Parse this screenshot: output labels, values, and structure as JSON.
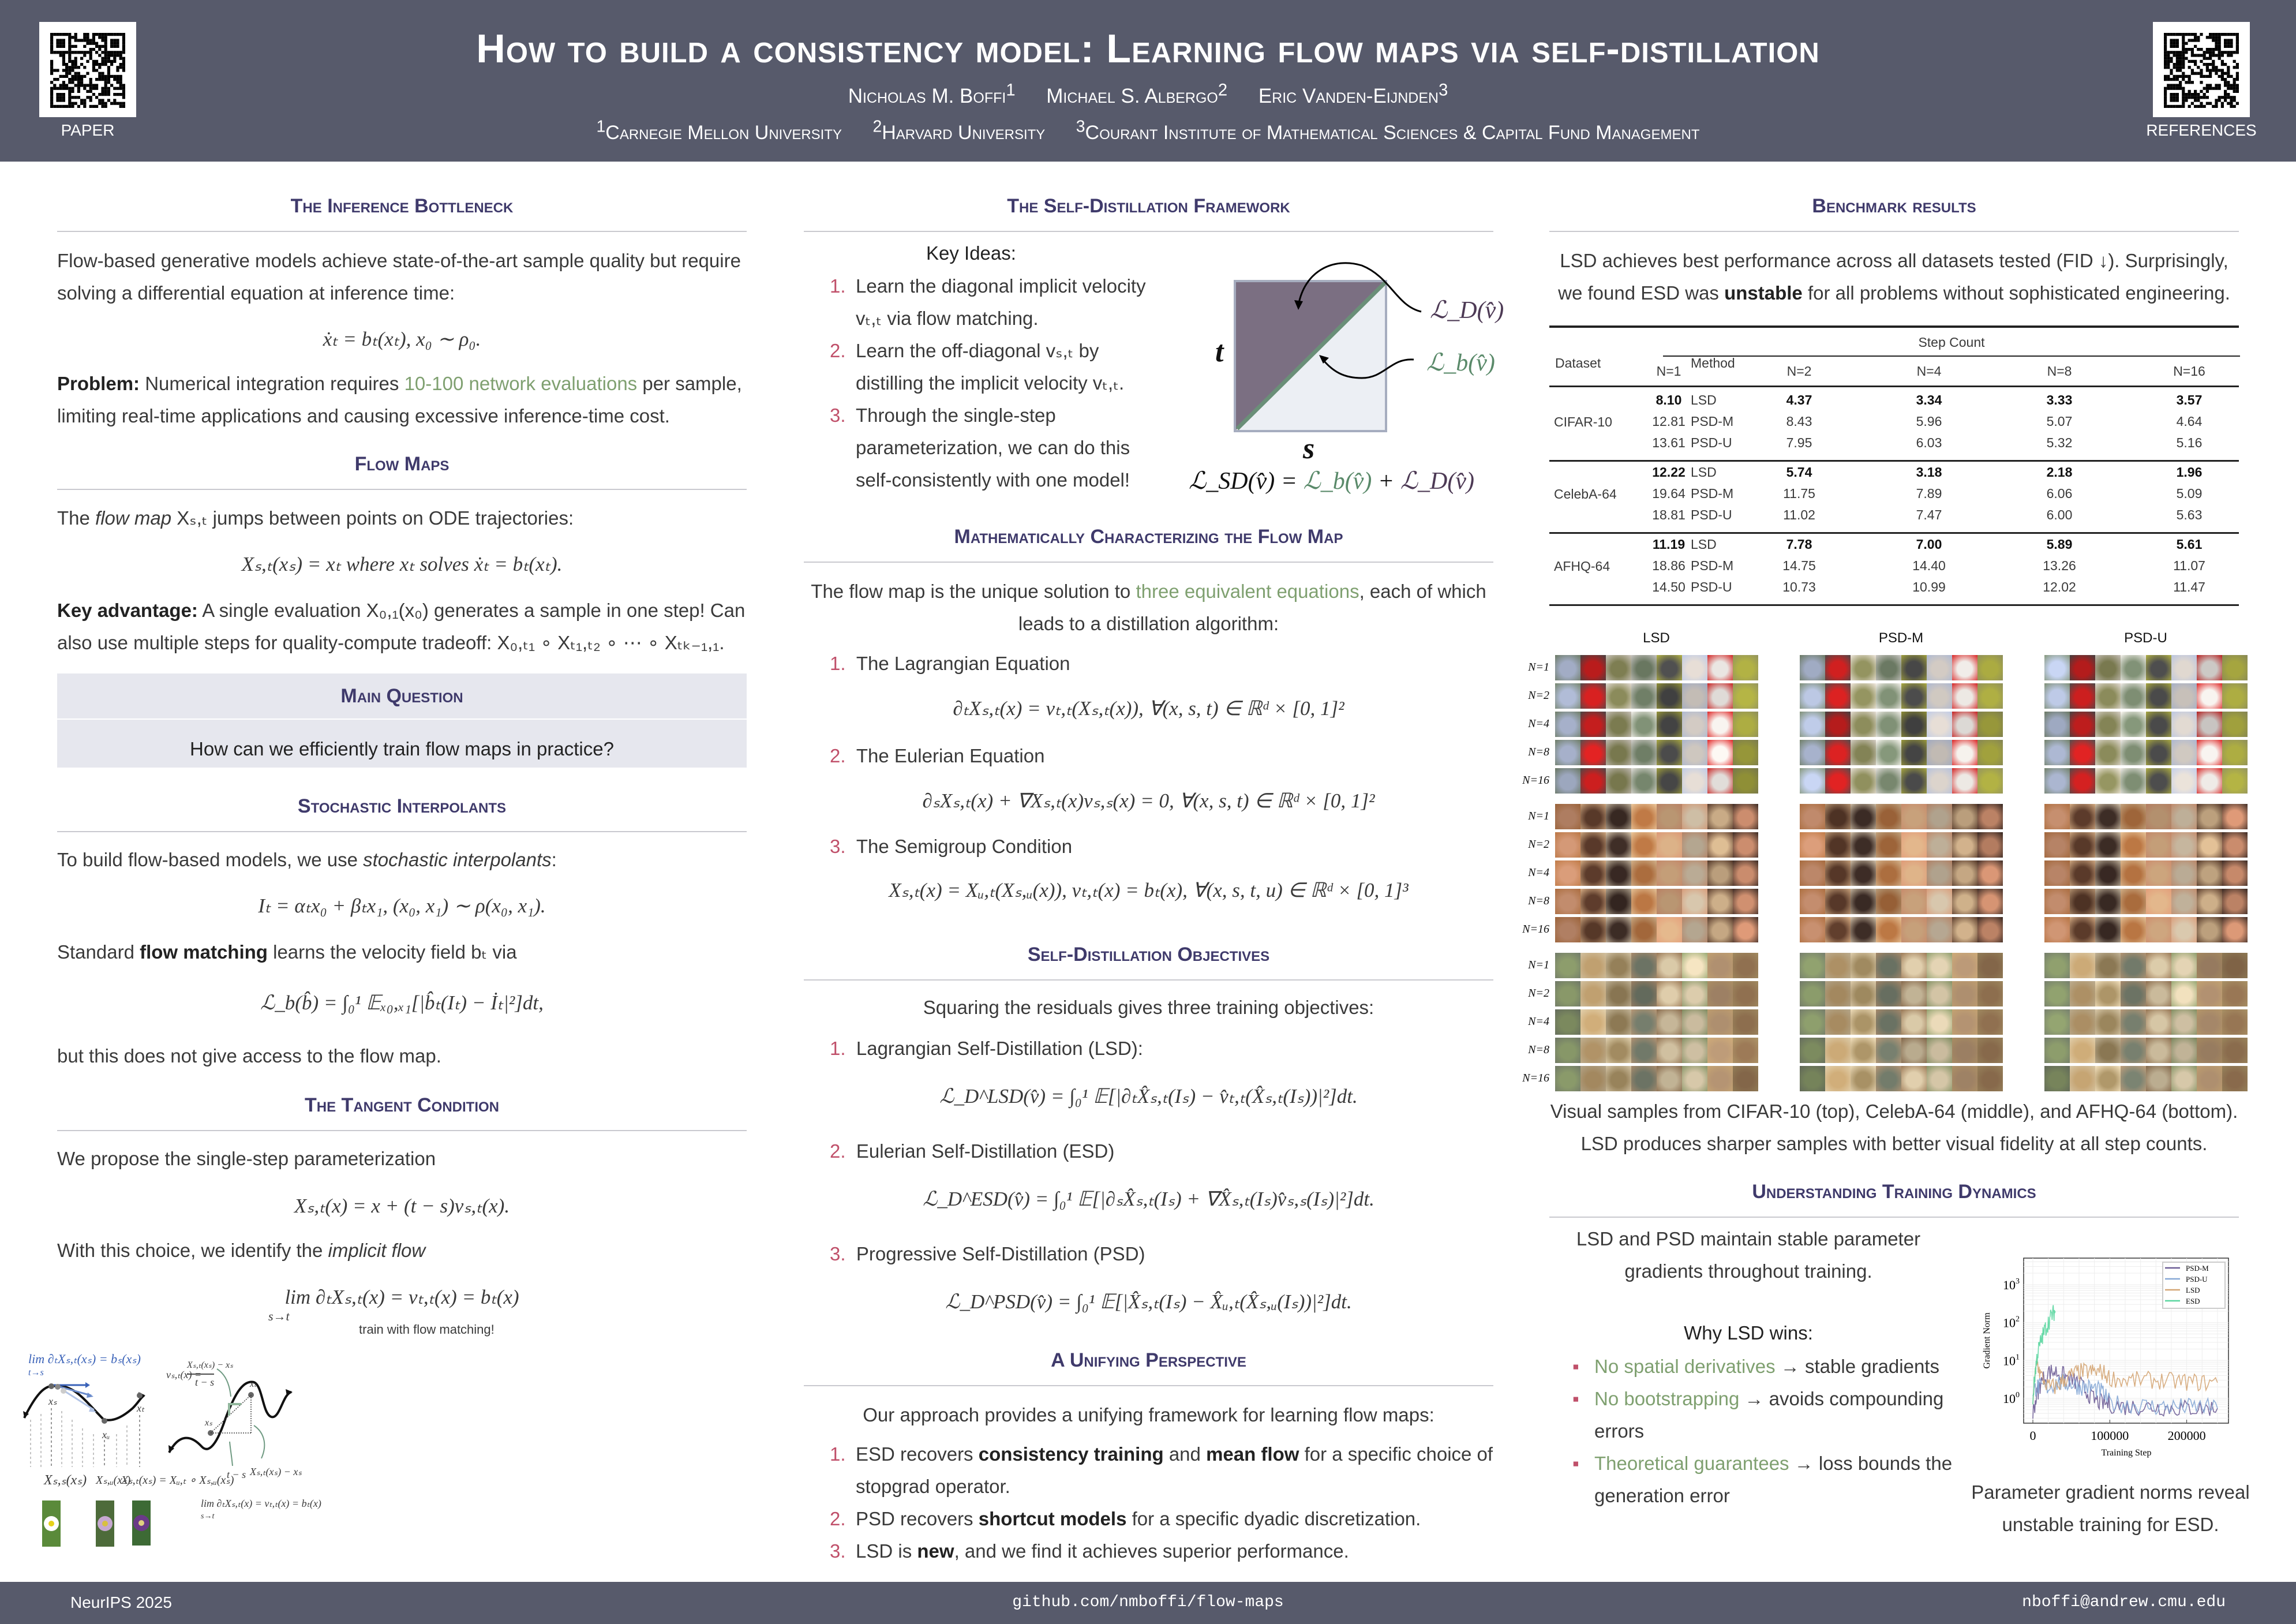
{
  "header": {
    "title": "How to build a consistency model: Learning flow maps via self-distillation",
    "authors": [
      {
        "name": "Nicholas M. Boffi",
        "sup": "1"
      },
      {
        "name": "Michael S. Albergo",
        "sup": "2"
      },
      {
        "name": "Eric Vanden-Eijnden",
        "sup": "3"
      }
    ],
    "affiliations": [
      {
        "sup": "1",
        "name": "Carnegie Mellon University"
      },
      {
        "sup": "2",
        "name": "Harvard University"
      },
      {
        "sup": "3",
        "name": "Courant Institute of Mathematical Sciences & Capital Fund Management"
      }
    ],
    "qr_left_label": "PAPER",
    "qr_right_label": "REFERENCES"
  },
  "footer": {
    "venue": "NeurIPS 2025",
    "url": "github.com/nmboffi/flow-maps",
    "email": "nboffi@andrew.cmu.edu"
  },
  "left": {
    "s1": {
      "title": "The Inference Bottleneck",
      "p1": "Flow-based generative models achieve state-of-the-art sample quality but require solving a differential equation at inference time:",
      "eq": "ẋₜ = bₜ(xₜ),        x₀ ∼ ρ₀.",
      "prob_label": "Problem:",
      "prob_a": " Numerical integration requires ",
      "prob_hl": "10-100 network evaluations",
      "prob_b": " per sample, limiting real-time applications and causing excessive inference-time cost."
    },
    "s2": {
      "title": "Flow Maps",
      "p_a": "The ",
      "p_i": "flow map",
      "p_b": " Xₛ,ₜ jumps between points on ODE trajectories:",
      "eq": "Xₛ,ₜ(xₛ) = xₜ    where xₜ solves ẋₜ = bₜ(xₜ).",
      "adv_label": "Key advantage:",
      "adv_text": " A single evaluation X₀,₁(x₀) generates a sample in one step! Can also use multiple steps for quality-compute tradeoff:  X₀,ₜ₁ ∘ Xₜ₁,ₜ₂ ∘ ⋯ ∘ Xₜₖ₋₁,₁."
    },
    "mq": {
      "title": "Main Question",
      "text": "How can we efficiently train flow maps in practice?"
    },
    "s3": {
      "title": "Stochastic Interpolants",
      "p_a": "To build flow-based models, we use ",
      "p_i": "stochastic interpolants",
      "p_b": ":",
      "eq1": "Iₜ = αₜx₀ + βₜx₁,    (x₀, x₁) ∼ ρ(x₀, x₁).",
      "p2_a": "Standard ",
      "p2_b": "flow matching",
      "p2_c": " learns the velocity field bₜ via",
      "eq2": "ℒ_b(b̂) = ∫₀¹ 𝔼ₓ₀,ₓ₁[|b̂ₜ(Iₜ) − İₜ|²]dt,",
      "p3": "but this does not give access to the flow map."
    },
    "s4": {
      "title": "The Tangent Condition",
      "p1": "We propose the single-step parameterization",
      "eq1": "Xₛ,ₜ(x) = x + (t − s)vₛ,ₜ(x).",
      "p2_a": "With this choice, we identify the ",
      "p2_i": "implicit flow",
      "eq2": "lim ∂ₜXₛ,ₜ(x) = vₜ,ₜ(x) = bₜ(x)",
      "eq2_sub": "s→t",
      "note": "train with flow matching!"
    },
    "diagram": {
      "lim_left": "lim ∂ₜXₛ,ₜ(xₛ) = bₛ(xₛ)",
      "lim_left_sub": "t→s",
      "xs": "xₛ",
      "xu": "xᵤ",
      "xt": "xₜ",
      "lab1": "Xₛ,ₛ(xₛ)",
      "lab2": "Xₛ,ᵤ(xₛ)",
      "lab3": "Xₛ,ₜ(xₛ) = Xᵤ,ₜ ∘ Xₛ,ᵤ(xₛ)",
      "vst_lhs": "vₛ,ₜ(x) =",
      "vst_num": "Xₛ,ₜ(xₛ) − xₛ",
      "vst_den": "t − s",
      "tms": "t − s",
      "diff": "Xₛ,ₜ(xₛ) − xₛ",
      "lim_right": "lim ∂ₜXₛ,ₜ(x) = vₜ,ₜ(x) = bₜ(x)",
      "lim_right_sub": "s→t"
    }
  },
  "mid": {
    "s1": {
      "title": "The Self-Distillation Framework",
      "key": "Key Ideas:",
      "items": [
        {
          "n": "1.",
          "a": "Learn the diagonal implicit velocity vₜ,ₜ via flow matching."
        },
        {
          "n": "2.",
          "a": "Learn the off-diagonal vₛ,ₜ by distilling the implicit velocity vₜ,ₜ."
        },
        {
          "n": "3.",
          "a": "Through the single-step parameterization, we can do this self-consistently with one model!"
        }
      ],
      "fig": {
        "t": "t",
        "s": "s",
        "LD": "ℒ_D(v̂)",
        "Lb": "ℒ_b(v̂)",
        "eq_lhs": "ℒ_SD(v̂) = ",
        "eq_b": "ℒ_b(v̂)",
        "eq_plus": " + ",
        "eq_d": "ℒ_D(v̂)",
        "colors": {
          "upper": "#7b6f82",
          "lower": "#eceff4",
          "diag": "#6a8f78",
          "border": "#a6adbf"
        }
      }
    },
    "s2": {
      "title": "Mathematically Characterizing the Flow Map",
      "p_a": "The flow map is the unique solution to ",
      "p_hl": "three equivalent equations",
      "p_b": ", each of which leads to a distillation algorithm:",
      "items": [
        {
          "n": "1.",
          "label": "The Lagrangian Equation",
          "eq": "∂ₜXₛ,ₜ(x) = vₜ,ₜ(Xₛ,ₜ(x)),    ∀(x, s, t) ∈ ℝᵈ × [0, 1]²"
        },
        {
          "n": "2.",
          "label": "The Eulerian Equation",
          "eq": "∂ₛXₛ,ₜ(x) + ∇Xₛ,ₜ(x)vₛ,ₛ(x) = 0,    ∀(x, s, t) ∈ ℝᵈ × [0, 1]²"
        },
        {
          "n": "3.",
          "label": "The Semigroup Condition",
          "eq": "Xₛ,ₜ(x) = Xᵤ,ₜ(Xₛ,ᵤ(x)),    vₜ,ₜ(x) = bₜ(x),    ∀(x, s, t, u) ∈ ℝᵈ × [0, 1]³"
        }
      ]
    },
    "s3": {
      "title": "Self-Distillation Objectives",
      "p": "Squaring the residuals gives three training objectives:",
      "items": [
        {
          "n": "1.",
          "label": "Lagrangian Self-Distillation (LSD):",
          "eq": "ℒ_D^LSD(v̂) = ∫₀¹ 𝔼[|∂ₜX̂ₛ,ₜ(Iₛ) − v̂ₜ,ₜ(X̂ₛ,ₜ(Iₛ))|²]dt."
        },
        {
          "n": "2.",
          "label": "Eulerian Self-Distillation (ESD)",
          "eq": "ℒ_D^ESD(v̂) = ∫₀¹ 𝔼[|∂ₛX̂ₛ,ₜ(Iₛ) + ∇X̂ₛ,ₜ(Iₛ)v̂ₛ,ₛ(Iₛ)|²]dt."
        },
        {
          "n": "3.",
          "label": "Progressive Self-Distillation (PSD)",
          "eq": "ℒ_D^PSD(v̂) = ∫₀¹ 𝔼[|X̂ₛ,ₜ(Iₛ) − X̂ᵤ,ₜ(X̂ₛ,ᵤ(Iₛ))|²]dt."
        }
      ]
    },
    "s4": {
      "title": "A Unifying Perspective",
      "p": "Our approach provides a unifying framework for learning flow maps:",
      "items": [
        {
          "n": "1.",
          "a": "ESD recovers ",
          "b1": "consistency training",
          "c": " and ",
          "b2": "mean flow",
          "d": " for a specific choice of stopgrad operator."
        },
        {
          "n": "2.",
          "a": "PSD recovers ",
          "b1": "shortcut models",
          "c": " for a specific dyadic discretization.",
          "b2": "",
          "d": ""
        },
        {
          "n": "3.",
          "a": "LSD is ",
          "b1": "new",
          "c": ", and we find it achieves superior performance.",
          "b2": "",
          "d": ""
        }
      ]
    }
  },
  "right": {
    "s1": {
      "title": "Benchmark results",
      "p_a": "LSD achieves best performance across all datasets tested (FID ↓).  Surprisingly, we found ESD was ",
      "p_b": "unstable",
      "p_c": " for all problems without sophisticated engineering."
    },
    "table": {
      "col_dataset": "Dataset",
      "col_method": "Method",
      "col_group": "Step Count",
      "steps": [
        "N=1",
        "N=2",
        "N=4",
        "N=8",
        "N=16"
      ],
      "groups": [
        {
          "dataset": "CIFAR-10",
          "rows": [
            {
              "method": "LSD",
              "values": [
                "8.10",
                "4.37",
                "3.34",
                "3.33",
                "3.57"
              ],
              "best": true
            },
            {
              "method": "PSD-M",
              "values": [
                "12.81",
                "8.43",
                "5.96",
                "5.07",
                "4.64"
              ]
            },
            {
              "method": "PSD-U",
              "values": [
                "13.61",
                "7.95",
                "6.03",
                "5.32",
                "5.16"
              ]
            }
          ]
        },
        {
          "dataset": "CelebA-64",
          "rows": [
            {
              "method": "LSD",
              "values": [
                "12.22",
                "5.74",
                "3.18",
                "2.18",
                "1.96"
              ],
              "best": true
            },
            {
              "method": "PSD-M",
              "values": [
                "19.64",
                "11.75",
                "7.89",
                "6.06",
                "5.09"
              ]
            },
            {
              "method": "PSD-U",
              "values": [
                "18.81",
                "11.02",
                "7.47",
                "6.00",
                "5.63"
              ]
            }
          ]
        },
        {
          "dataset": "AFHQ-64",
          "rows": [
            {
              "method": "LSD",
              "values": [
                "11.19",
                "7.78",
                "7.00",
                "5.89",
                "5.61"
              ],
              "best": true
            },
            {
              "method": "PSD-M",
              "values": [
                "18.86",
                "14.75",
                "14.40",
                "13.26",
                "11.07"
              ]
            },
            {
              "method": "PSD-U",
              "values": [
                "14.50",
                "10.73",
                "10.99",
                "12.02",
                "11.47"
              ]
            }
          ]
        }
      ]
    },
    "samples": {
      "methods": [
        "LSD",
        "PSD-M",
        "PSD-U"
      ],
      "row_labels": [
        "N=1",
        "N=2",
        "N=4",
        "N=8",
        "N=16"
      ],
      "caption": "Visual samples from CIFAR-10 (top), CelebA-64 (middle), and AFHQ-64 (bottom). LSD produces sharper samples with better visual fidelity at all step counts."
    },
    "s2": {
      "title": "Understanding Training Dynamics",
      "p": "LSD and PSD maintain stable parameter gradients throughout training.",
      "why": "Why LSD wins:",
      "bullets": [
        {
          "hl": "No spatial derivatives",
          "rest": " → stable gradients"
        },
        {
          "hl": "No bootstrapping",
          "rest": " → avoids compounding errors"
        },
        {
          "hl": "Theoretical guarantees",
          "rest": " → loss bounds the generation error"
        }
      ],
      "chart_caption": "Parameter gradient norms reveal unstable training for ESD."
    }
  },
  "chart_data": {
    "type": "line",
    "xlabel": "Training Step",
    "ylabel": "Gradient Norm",
    "yscale": "log",
    "xlim": [
      -12000,
      255000
    ],
    "ylim": [
      0.22,
      5000
    ],
    "xticks": [
      {
        "v": 0,
        "label": "0"
      },
      {
        "v": 100000,
        "label": "100000"
      },
      {
        "v": 200000,
        "label": "200000"
      }
    ],
    "yticks": [
      {
        "v": 1,
        "label": "10",
        "exp": "0"
      },
      {
        "v": 10,
        "label": "10",
        "exp": "1"
      },
      {
        "v": 100,
        "label": "10",
        "exp": "2"
      },
      {
        "v": 1000,
        "label": "10",
        "exp": "3"
      }
    ],
    "grid": true,
    "legend": "top-right",
    "series": [
      {
        "name": "PSD-M",
        "color": "#6b5b95",
        "x": [
          0,
          5000,
          10000,
          20000,
          30000,
          40000,
          50000,
          60000,
          70000,
          80000,
          90000,
          100000,
          120000,
          140000,
          160000,
          180000,
          200000,
          220000,
          240000
        ],
        "y": [
          0.4,
          1.2,
          2.5,
          5,
          5,
          4,
          3,
          2.5,
          1.5,
          0.9,
          0.75,
          0.7,
          0.6,
          0.6,
          0.6,
          0.55,
          0.55,
          0.55,
          0.55
        ]
      },
      {
        "name": "PSD-U",
        "color": "#86a8d6",
        "x": [
          0,
          5000,
          10000,
          20000,
          30000,
          40000,
          50000,
          60000,
          70000,
          80000,
          90000,
          100000,
          120000,
          140000,
          160000,
          180000,
          200000,
          220000,
          240000
        ],
        "y": [
          1.5,
          2,
          2,
          2,
          2.5,
          2.5,
          2.5,
          2,
          2,
          1.8,
          1.5,
          0.75,
          0.7,
          0.65,
          0.6,
          0.6,
          0.6,
          0.6,
          0.55
        ]
      },
      {
        "name": "LSD",
        "color": "#d4a574",
        "x": [
          0,
          5000,
          10000,
          20000,
          30000,
          40000,
          50000,
          60000,
          70000,
          80000,
          90000,
          100000,
          120000,
          140000,
          160000,
          180000,
          200000,
          220000,
          240000
        ],
        "y": [
          1,
          10,
          4,
          2,
          2,
          3,
          4,
          5,
          5,
          5,
          5,
          3.5,
          3,
          3,
          3,
          2.8,
          2.7,
          2.6,
          2.6
        ]
      },
      {
        "name": "ESD",
        "color": "#5ad6a0",
        "x": [
          0,
          3000,
          6000,
          10000,
          15000,
          20000,
          25000,
          29000
        ],
        "y": [
          1,
          5,
          15,
          30,
          60,
          100,
          160,
          200
        ]
      }
    ]
  }
}
